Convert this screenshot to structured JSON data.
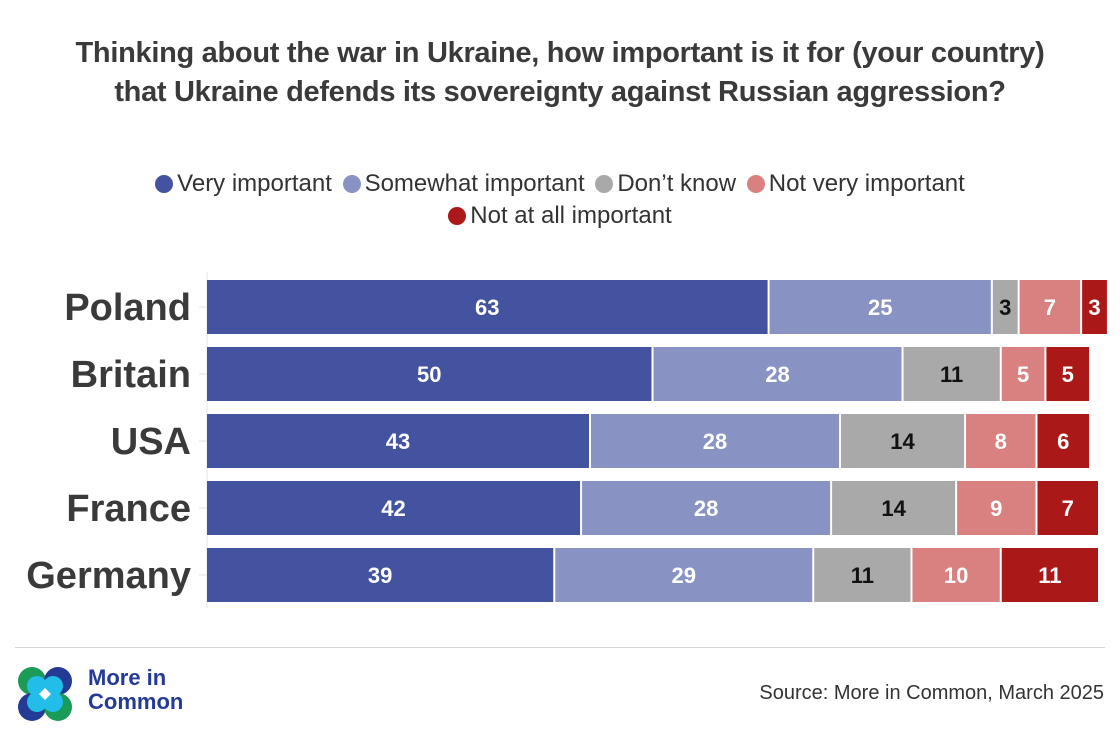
{
  "chart_data": {
    "type": "bar",
    "orientation": "horizontal",
    "stacked": true,
    "title": "Thinking about the war in Ukraine, how important is it for (your country) that Ukraine defends its sovereignty against Russian aggression?",
    "xlabel": "",
    "ylabel": "",
    "xlim": [
      0,
      100
    ],
    "grid": false,
    "legend_position": "top-center",
    "categories": [
      "Poland",
      "Britain",
      "USA",
      "France",
      "Germany"
    ],
    "series": [
      {
        "name": "Very important",
        "color": "#4353a0",
        "label_color": "#ffffff",
        "values": [
          63,
          50,
          43,
          42,
          39
        ]
      },
      {
        "name": "Somewhat important",
        "color": "#8893c4",
        "label_color": "#ffffff",
        "values": [
          25,
          28,
          28,
          28,
          29
        ]
      },
      {
        "name": "Don’t know",
        "color": "#a9a9a9",
        "label_color": "#111111",
        "values": [
          3,
          11,
          14,
          14,
          11
        ]
      },
      {
        "name": "Not very important",
        "color": "#d98080",
        "label_color": "#ffffff",
        "values": [
          7,
          5,
          8,
          9,
          10
        ]
      },
      {
        "name": "Not at all important",
        "color": "#ab1818",
        "label_color": "#ffffff",
        "values": [
          3,
          5,
          6,
          7,
          11
        ]
      }
    ]
  },
  "footer": {
    "source": "Source: More in Common, March 2025",
    "logo_line1": "More in",
    "logo_line2": "Common"
  }
}
